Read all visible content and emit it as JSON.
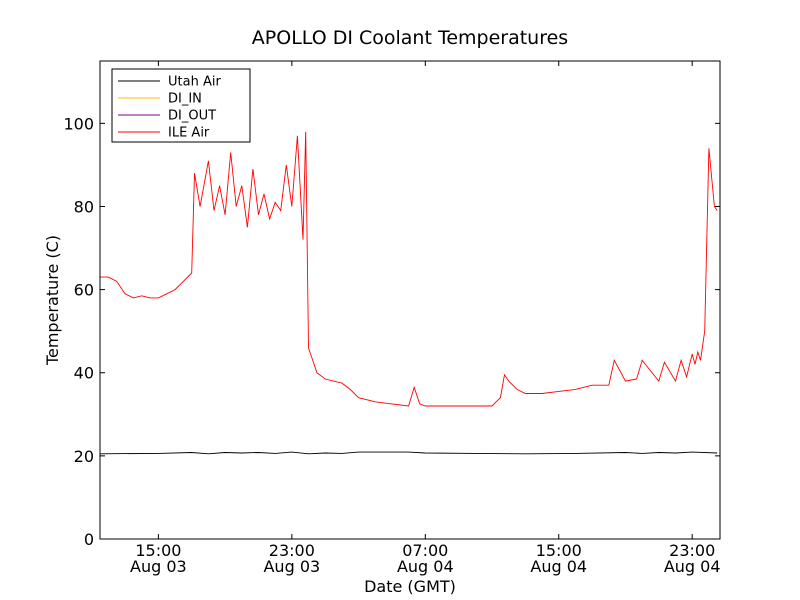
{
  "chart_data": {
    "type": "line",
    "title": "APOLLO DI Coolant Temperatures",
    "xlabel": "Date (GMT)",
    "ylabel": "Temperature (C)",
    "ylim": [
      0,
      115
    ],
    "yticks": [
      0,
      20,
      40,
      60,
      80,
      100
    ],
    "xlim": [
      "2014-08-03 11:30",
      "2014-08-05 00:40"
    ],
    "xticks": [
      {
        "time": "15:00",
        "date": "Aug 03"
      },
      {
        "time": "23:00",
        "date": "Aug 03"
      },
      {
        "time": "07:00",
        "date": "Aug 04"
      },
      {
        "time": "15:00",
        "date": "Aug 04"
      },
      {
        "time": "23:00",
        "date": "Aug 04"
      }
    ],
    "grid": false,
    "legend_position": "top-left",
    "series": [
      {
        "name": "Utah Air",
        "color": "#000000",
        "x": [
          "Aug 03 11:30",
          "Aug 03 15:00",
          "Aug 03 17:00",
          "Aug 03 18:00",
          "Aug 03 19:00",
          "Aug 03 20:00",
          "Aug 03 21:00",
          "Aug 03 22:00",
          "Aug 03 23:00",
          "Aug 04 00:00",
          "Aug 04 01:00",
          "Aug 04 02:00",
          "Aug 04 03:00",
          "Aug 04 06:00",
          "Aug 04 07:00",
          "Aug 04 10:00",
          "Aug 04 13:00",
          "Aug 04 16:00",
          "Aug 04 19:00",
          "Aug 04 20:00",
          "Aug 04 21:00",
          "Aug 04 22:00",
          "Aug 04 23:00",
          "Aug 05 00:30"
        ],
        "y": [
          20.5,
          20.6,
          20.8,
          20.5,
          20.8,
          20.7,
          20.8,
          20.6,
          20.9,
          20.5,
          20.7,
          20.6,
          20.9,
          20.9,
          20.7,
          20.6,
          20.5,
          20.6,
          20.8,
          20.6,
          20.8,
          20.7,
          20.9,
          20.7
        ]
      },
      {
        "name": "DI_IN",
        "color": "#ffbf00",
        "x": [],
        "y": []
      },
      {
        "name": "DI_OUT",
        "color": "#7f007f",
        "x": [],
        "y": []
      },
      {
        "name": "ILE Air",
        "color": "#ff0000",
        "x": [
          "Aug 03 11:30",
          "Aug 03 12:00",
          "Aug 03 12:30",
          "Aug 03 13:00",
          "Aug 03 13:30",
          "Aug 03 14:00",
          "Aug 03 14:30",
          "Aug 03 15:00",
          "Aug 03 15:30",
          "Aug 03 16:00",
          "Aug 03 16:30",
          "Aug 03 17:00",
          "Aug 03 17:10",
          "Aug 03 17:30",
          "Aug 03 18:00",
          "Aug 03 18:20",
          "Aug 03 18:40",
          "Aug 03 19:00",
          "Aug 03 19:20",
          "Aug 03 19:40",
          "Aug 03 20:00",
          "Aug 03 20:20",
          "Aug 03 20:40",
          "Aug 03 21:00",
          "Aug 03 21:20",
          "Aug 03 21:40",
          "Aug 03 22:00",
          "Aug 03 22:20",
          "Aug 03 22:40",
          "Aug 03 23:00",
          "Aug 03 23:20",
          "Aug 03 23:40",
          "Aug 03 23:50",
          "Aug 04 00:00",
          "Aug 04 00:10",
          "Aug 04 00:30",
          "Aug 04 01:00",
          "Aug 04 01:30",
          "Aug 04 02:00",
          "Aug 04 02:30",
          "Aug 04 03:00",
          "Aug 04 04:00",
          "Aug 04 05:00",
          "Aug 04 06:00",
          "Aug 04 06:20",
          "Aug 04 06:40",
          "Aug 04 07:00",
          "Aug 04 08:00",
          "Aug 04 09:00",
          "Aug 04 10:00",
          "Aug 04 11:00",
          "Aug 04 11:30",
          "Aug 04 11:45",
          "Aug 04 12:00",
          "Aug 04 12:30",
          "Aug 04 13:00",
          "Aug 04 14:00",
          "Aug 04 15:00",
          "Aug 04 16:00",
          "Aug 04 17:00",
          "Aug 04 18:00",
          "Aug 04 18:20",
          "Aug 04 19:00",
          "Aug 04 19:40",
          "Aug 04 20:00",
          "Aug 04 21:00",
          "Aug 04 21:20",
          "Aug 04 22:00",
          "Aug 04 22:20",
          "Aug 04 22:40",
          "Aug 04 23:00",
          "Aug 04 23:10",
          "Aug 04 23:20",
          "Aug 04 23:30",
          "Aug 04 23:45",
          "Aug 05 00:00",
          "Aug 05 00:20",
          "Aug 05 00:30"
        ],
        "y": [
          63,
          63,
          62,
          59,
          58,
          58.5,
          58,
          58,
          59,
          60,
          62,
          64,
          88,
          80,
          91,
          79,
          85,
          78,
          93,
          80,
          85,
          75,
          89,
          78,
          83,
          77,
          81,
          79,
          90,
          80,
          97,
          72,
          98,
          46,
          44,
          40,
          38.5,
          38,
          37.5,
          36,
          34,
          33,
          32.5,
          32,
          36.5,
          32.5,
          32,
          32,
          32,
          32,
          32,
          34,
          39.5,
          38,
          36,
          35,
          35,
          35.5,
          36,
          37,
          37,
          43,
          38,
          38.5,
          43,
          38,
          42.5,
          38,
          43,
          39,
          44.5,
          42,
          45,
          43,
          50,
          94,
          80,
          79
        ]
      }
    ]
  }
}
